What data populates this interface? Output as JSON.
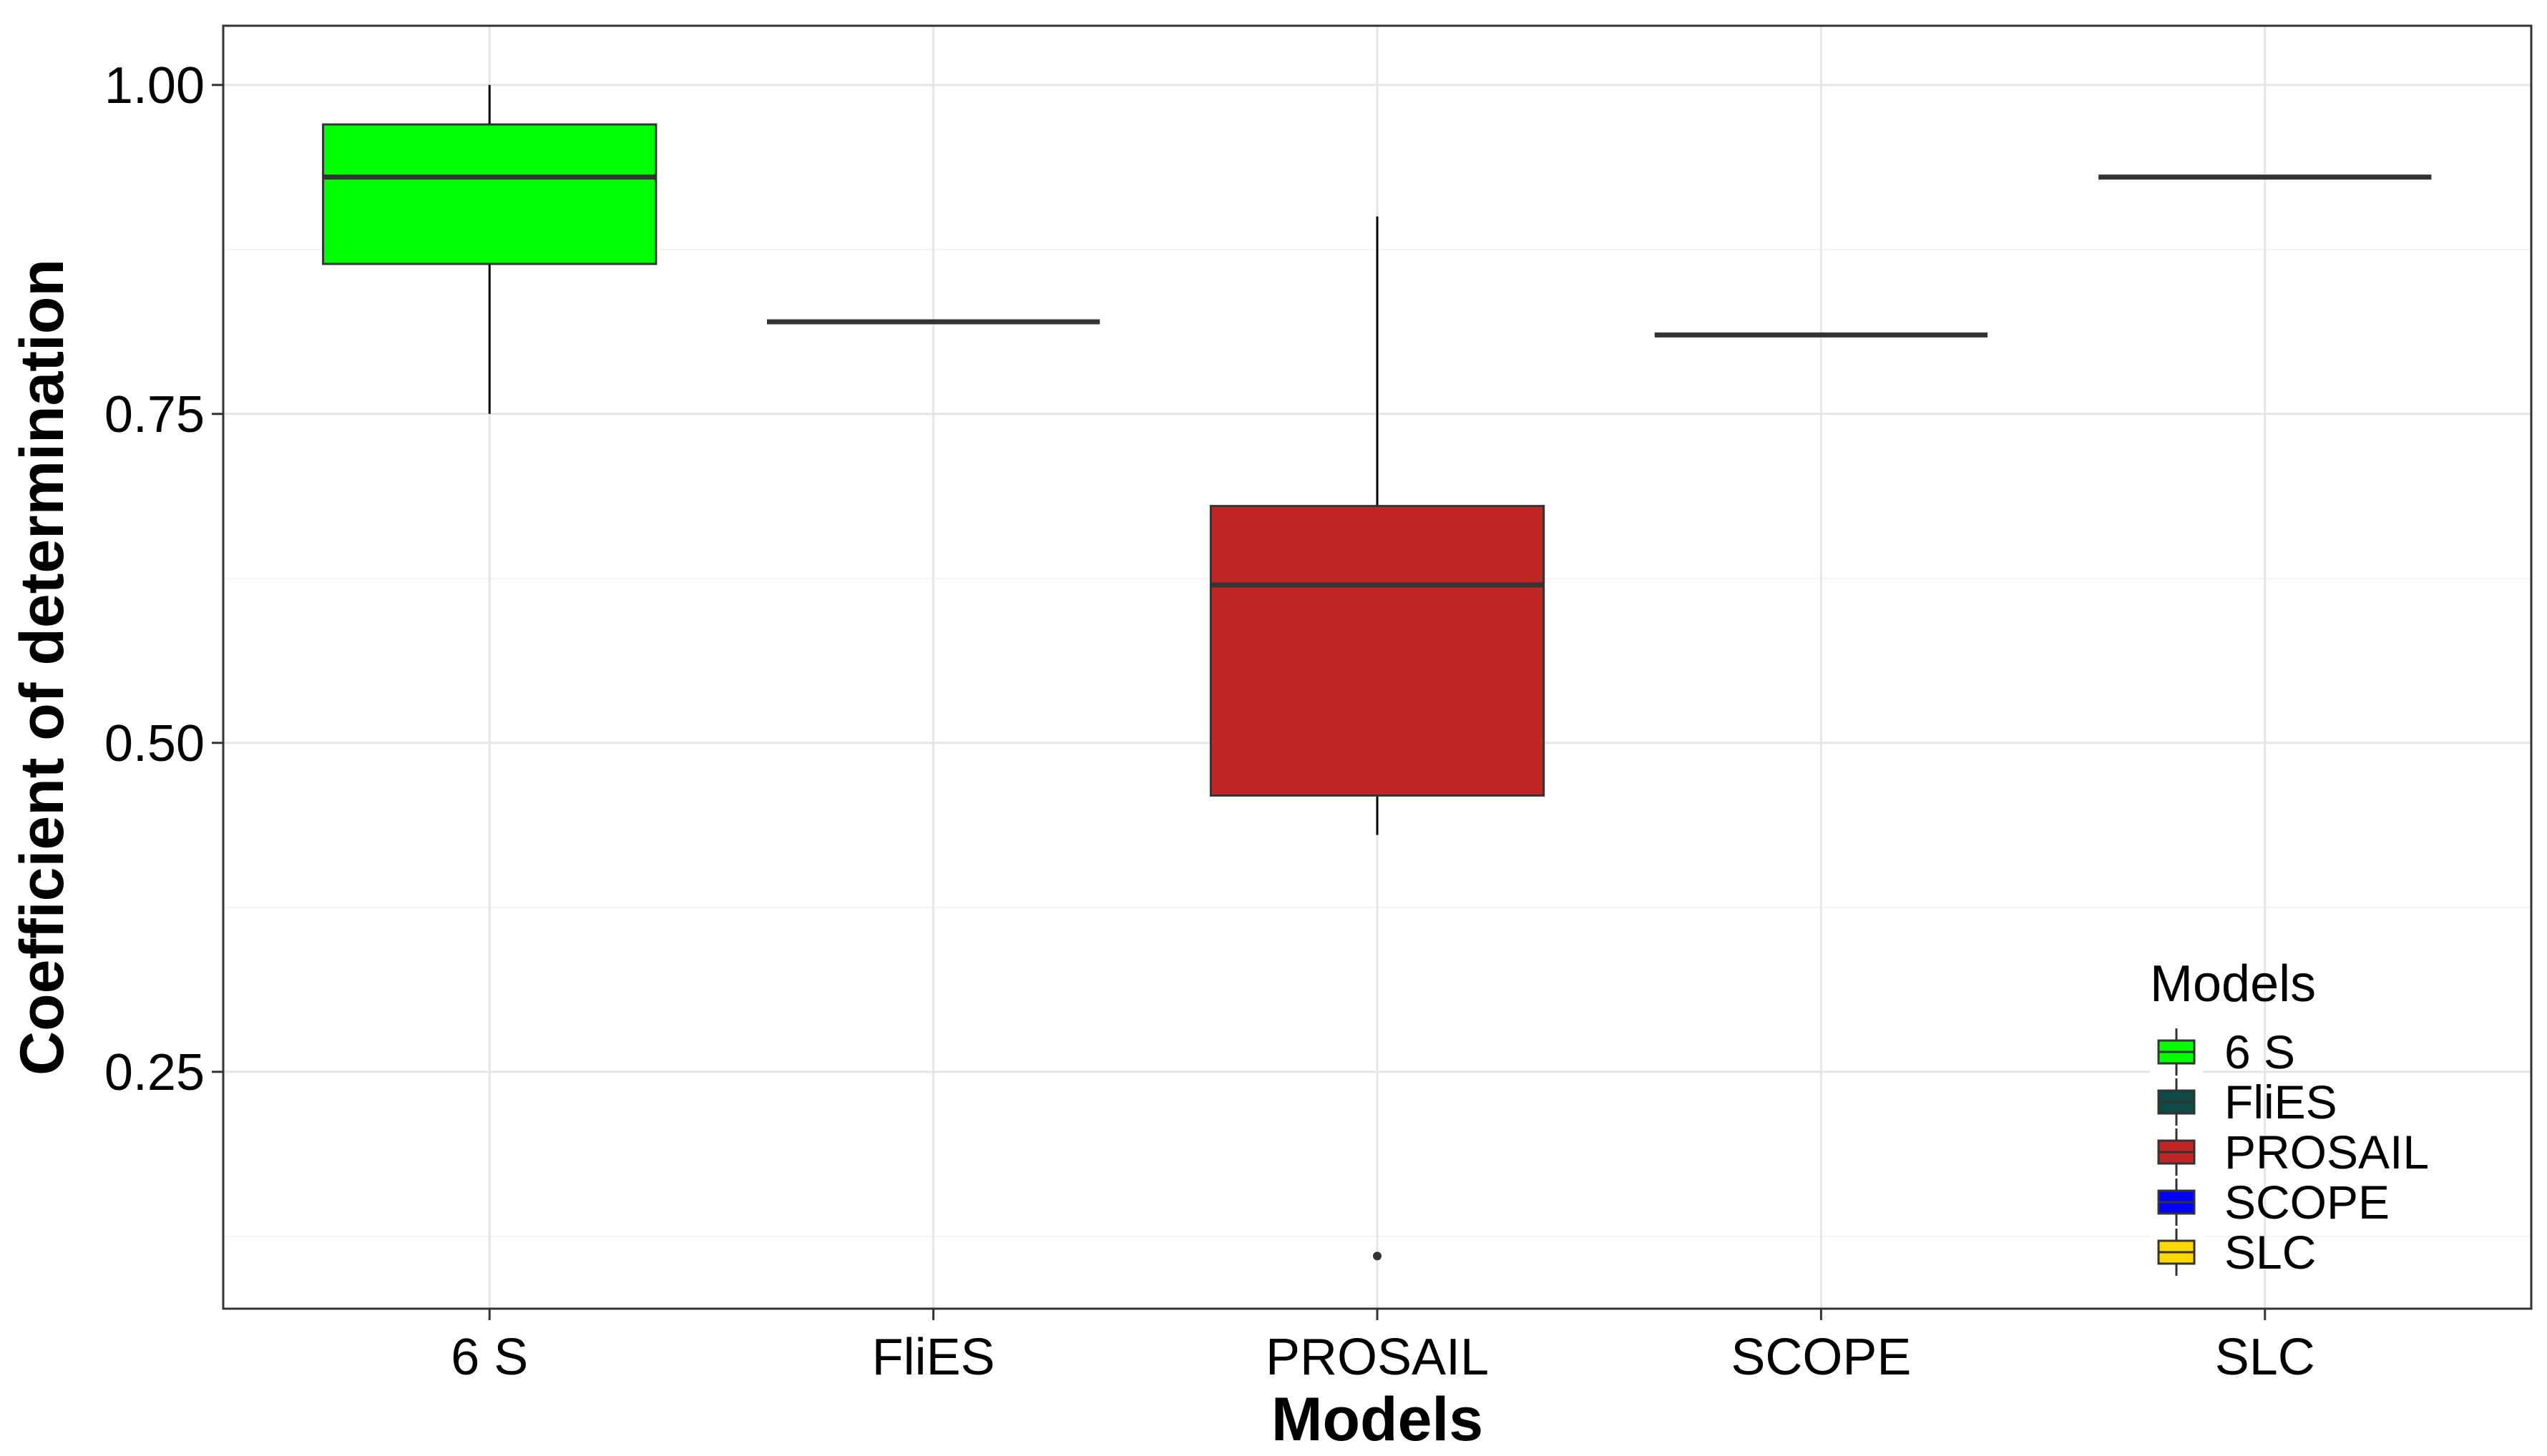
{
  "chart_data": {
    "type": "boxplot",
    "title": "",
    "xlabel": "Models",
    "ylabel": "Coefficient of determination",
    "categories": [
      "6 S",
      "FliES",
      "PROSAIL",
      "SCOPE",
      "SLC"
    ],
    "ylim": [
      0.07,
      1.045
    ],
    "yticks": [
      0.25,
      0.5,
      0.75,
      1.0
    ],
    "ytick_labels": [
      "0.25",
      "0.50",
      "0.75",
      "1.00"
    ],
    "grid": true,
    "series": [
      {
        "category": "6 S",
        "whisker_low": 0.75,
        "q1": 0.864,
        "median": 0.93,
        "q3": 0.97,
        "whisker_high": 1.0,
        "outliers": [],
        "color": "#00ff00"
      },
      {
        "category": "FliES",
        "whisker_low": 0.82,
        "q1": 0.82,
        "median": 0.82,
        "q3": 0.82,
        "whisker_high": 0.82,
        "outliers": [],
        "color": "#0d4a45"
      },
      {
        "category": "PROSAIL",
        "whisker_low": 0.43,
        "q1": 0.46,
        "median": 0.62,
        "q3": 0.68,
        "whisker_high": 0.9,
        "outliers": [
          0.11
        ],
        "color": "#c02626"
      },
      {
        "category": "SCOPE",
        "whisker_low": 0.81,
        "q1": 0.81,
        "median": 0.81,
        "q3": 0.81,
        "whisker_high": 0.81,
        "outliers": [],
        "color": "#0000ff"
      },
      {
        "category": "SLC",
        "whisker_low": 0.93,
        "q1": 0.93,
        "median": 0.93,
        "q3": 0.93,
        "whisker_high": 0.93,
        "outliers": [],
        "color": "#ffd700"
      }
    ],
    "legend": {
      "title": "Models",
      "placement": "bottom-right",
      "entries": [
        "6 S",
        "FliES",
        "PROSAIL",
        "SCOPE",
        "SLC"
      ]
    }
  }
}
